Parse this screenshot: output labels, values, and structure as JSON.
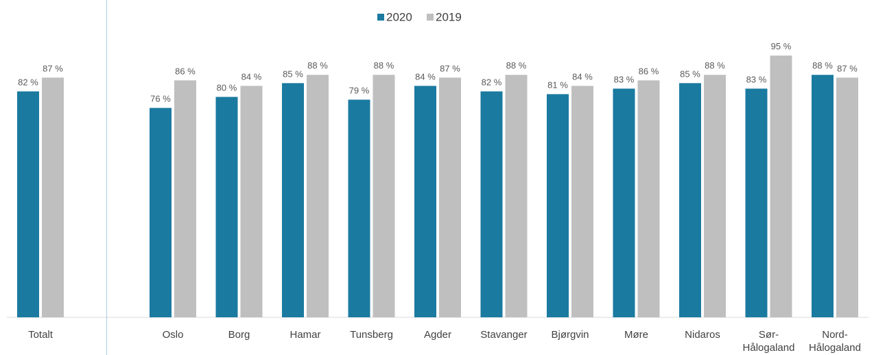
{
  "chart_data": {
    "type": "bar",
    "categories": [
      "Totalt",
      null,
      "Oslo",
      "Borg",
      "Hamar",
      "Tunsberg",
      "Agder",
      "Stavanger",
      "Bjørgvin",
      "Møre",
      "Nidaros",
      "Sør-\nHålogaland",
      "Nord-\nHålogaland"
    ],
    "series": [
      {
        "name": "2020",
        "color": "#1b7aa0",
        "values": [
          82,
          null,
          76,
          80,
          85,
          79,
          84,
          82,
          81,
          83,
          85,
          83,
          88
        ],
        "value_labels": [
          "82 %",
          null,
          "76 %",
          "80 %",
          "85 %",
          "79 %",
          "84 %",
          "82 %",
          "81 %",
          "83 %",
          "85 %",
          "83 %",
          "88 %"
        ]
      },
      {
        "name": "2019",
        "color": "#bfbfbf",
        "values": [
          87,
          null,
          86,
          84,
          88,
          88,
          87,
          88,
          84,
          86,
          88,
          95,
          87
        ],
        "value_labels": [
          "87 %",
          null,
          "86 %",
          "84 %",
          "88 %",
          "88 %",
          "87 %",
          "88 %",
          "84 %",
          "86 %",
          "88 %",
          "95 %",
          "87 %"
        ]
      }
    ],
    "ylim": [
      0,
      100
    ],
    "legend": "top"
  }
}
